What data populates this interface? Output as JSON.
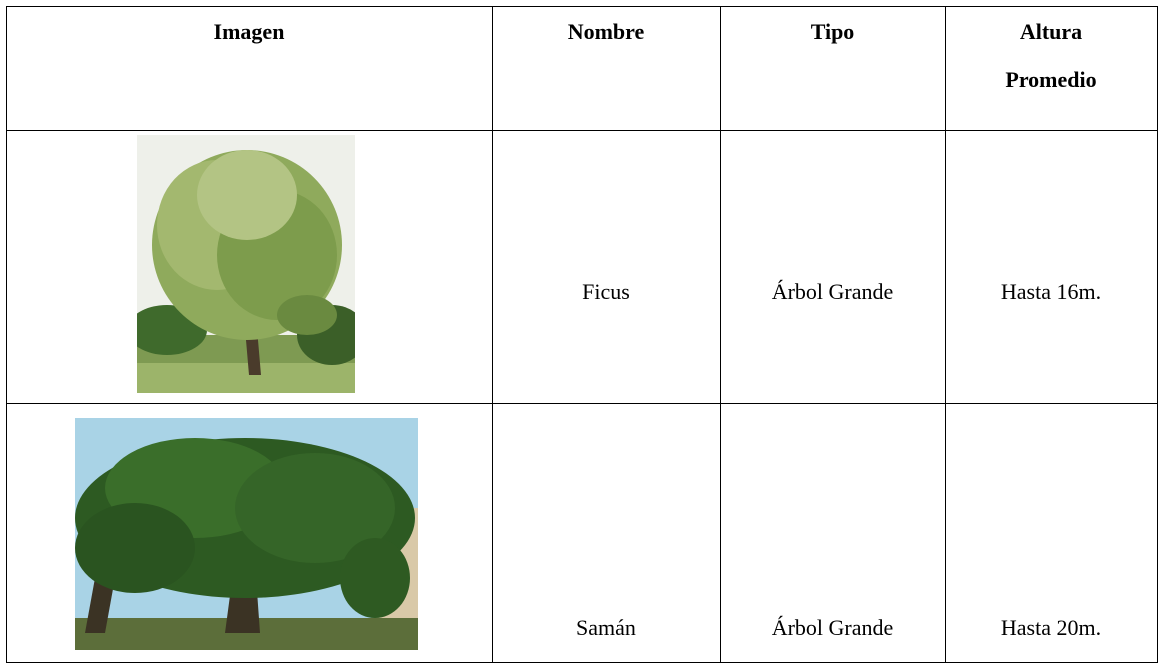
{
  "table": {
    "header": [
      "Imagen",
      "Nombre",
      "Tipo",
      "Altura Promedio"
    ],
    "rows": [
      [
        "Ficus",
        "Árbol Grande",
        "Hasta 16m."
      ],
      [
        "Samán",
        "Árbol Grande",
        "Hasta 20m."
      ]
    ]
  }
}
